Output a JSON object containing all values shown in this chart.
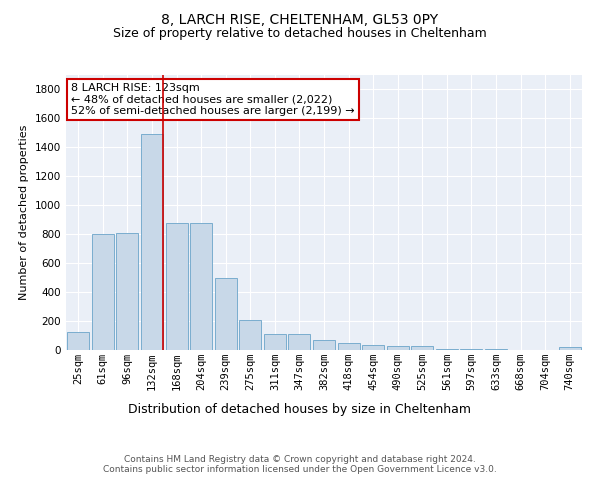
{
  "title": "8, LARCH RISE, CHELTENHAM, GL53 0PY",
  "subtitle": "Size of property relative to detached houses in Cheltenham",
  "xlabel": "Distribution of detached houses by size in Cheltenham",
  "ylabel": "Number of detached properties",
  "categories": [
    "25sqm",
    "61sqm",
    "96sqm",
    "132sqm",
    "168sqm",
    "204sqm",
    "239sqm",
    "275sqm",
    "311sqm",
    "347sqm",
    "382sqm",
    "418sqm",
    "454sqm",
    "490sqm",
    "525sqm",
    "561sqm",
    "597sqm",
    "633sqm",
    "668sqm",
    "704sqm",
    "740sqm"
  ],
  "values": [
    125,
    800,
    810,
    1490,
    880,
    875,
    500,
    205,
    110,
    110,
    68,
    50,
    35,
    28,
    25,
    10,
    8,
    5,
    3,
    2,
    18
  ],
  "bar_color": "#c8d8e8",
  "bar_edge_color": "#7aadce",
  "red_line_x": 3.45,
  "annotation_text": "8 LARCH RISE: 123sqm\n← 48% of detached houses are smaller (2,022)\n52% of semi-detached houses are larger (2,199) →",
  "annotation_box_color": "white",
  "annotation_box_edge_color": "#cc0000",
  "red_line_color": "#cc0000",
  "background_color": "#eaeff7",
  "grid_color": "white",
  "ylim": [
    0,
    1900
  ],
  "yticks": [
    0,
    200,
    400,
    600,
    800,
    1000,
    1200,
    1400,
    1600,
    1800
  ],
  "footer_text": "Contains HM Land Registry data © Crown copyright and database right 2024.\nContains public sector information licensed under the Open Government Licence v3.0.",
  "title_fontsize": 10,
  "subtitle_fontsize": 9,
  "xlabel_fontsize": 9,
  "ylabel_fontsize": 8,
  "tick_fontsize": 7.5,
  "annotation_fontsize": 8,
  "footer_fontsize": 6.5
}
